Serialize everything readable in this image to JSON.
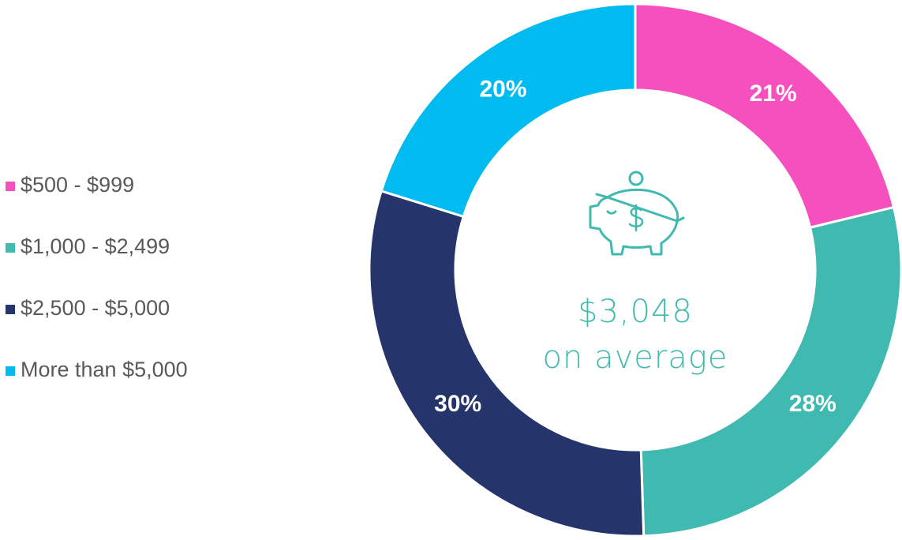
{
  "chart_data": {
    "type": "donut",
    "categories": [
      "$500 - $999",
      "$1,000 - $2,499",
      "$2,500 - $5,000",
      "More than $5,000"
    ],
    "values": [
      21,
      28,
      30,
      20
    ],
    "value_labels": [
      "21%",
      "28%",
      "30%",
      "20%"
    ],
    "colors": [
      "#F64FBE",
      "#40BAB0",
      "#25346B",
      "#00BBF0"
    ],
    "annotations": [
      "$3,048",
      "on average"
    ],
    "legend": "left"
  }
}
